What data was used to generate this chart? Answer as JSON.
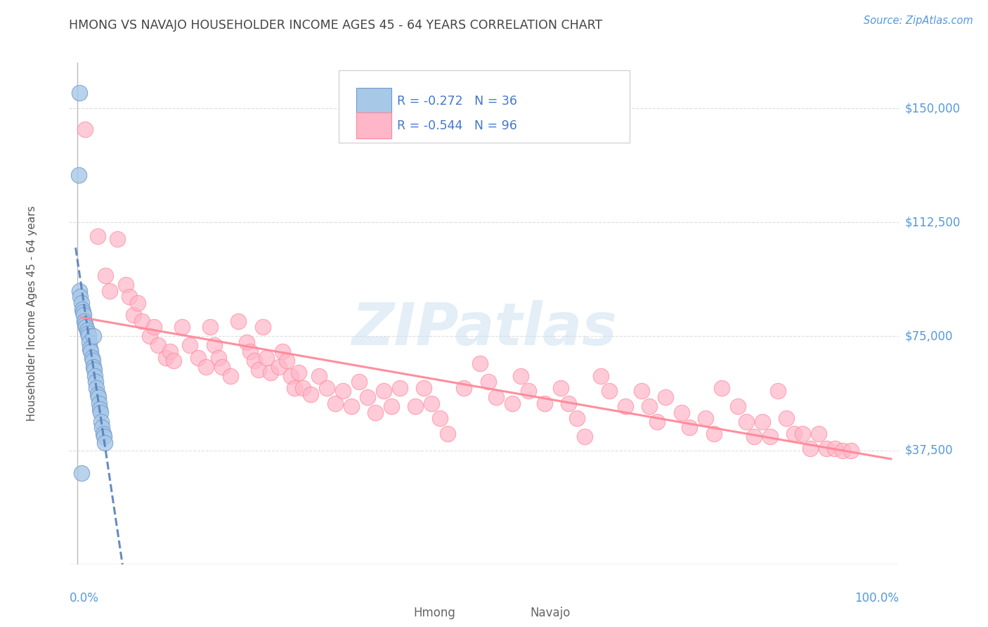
{
  "title": "HMONG VS NAVAJO HOUSEHOLDER INCOME AGES 45 - 64 YEARS CORRELATION CHART",
  "source": "Source: ZipAtlas.com",
  "ylabel": "Householder Income Ages 45 - 64 years",
  "ytick_values": [
    37500,
    75000,
    112500,
    150000
  ],
  "ytick_labels": [
    "$37,500",
    "$75,000",
    "$112,500",
    "$150,000"
  ],
  "ymin": 0,
  "ymax": 165000,
  "xmin": -0.01,
  "xmax": 1.02,
  "watermark": "ZIPatlas",
  "hmong_R": -0.272,
  "hmong_N": 36,
  "navajo_R": -0.544,
  "navajo_N": 96,
  "hmong_color": "#A8C8E8",
  "navajo_color": "#FFB6C8",
  "hmong_edge": "#7099CC",
  "navajo_edge": "#FF8899",
  "hmong_line_color": "#5580BB",
  "navajo_line_color": "#FF8899",
  "background_color": "#FFFFFF",
  "grid_color": "#DDDDDD",
  "title_color": "#444444",
  "source_color": "#5599DD",
  "axis_label_color": "#5599DD",
  "legend_text_color": "#4477CC",
  "hmong_x": [
    0.002,
    0.003,
    0.004,
    0.005,
    0.006,
    0.007,
    0.008,
    0.009,
    0.01,
    0.011,
    0.012,
    0.013,
    0.014,
    0.015,
    0.016,
    0.017,
    0.018,
    0.019,
    0.02,
    0.021,
    0.022,
    0.023,
    0.024,
    0.025,
    0.026,
    0.027,
    0.028,
    0.029,
    0.03,
    0.031,
    0.032,
    0.033,
    0.034,
    0.003,
    0.02,
    0.005
  ],
  "hmong_y": [
    128000,
    90000,
    88000,
    86000,
    84000,
    83000,
    82000,
    80000,
    79000,
    78000,
    77000,
    76000,
    75000,
    73000,
    71000,
    70000,
    68000,
    67000,
    65000,
    64000,
    62000,
    60000,
    58000,
    56000,
    55000,
    53000,
    51000,
    50000,
    47000,
    45000,
    43000,
    42000,
    40000,
    155000,
    75000,
    30000
  ],
  "navajo_x": [
    0.01,
    0.025,
    0.035,
    0.04,
    0.05,
    0.06,
    0.065,
    0.07,
    0.075,
    0.08,
    0.09,
    0.095,
    0.1,
    0.11,
    0.115,
    0.12,
    0.13,
    0.14,
    0.15,
    0.16,
    0.165,
    0.17,
    0.175,
    0.18,
    0.19,
    0.2,
    0.21,
    0.215,
    0.22,
    0.225,
    0.23,
    0.235,
    0.24,
    0.25,
    0.255,
    0.26,
    0.265,
    0.27,
    0.275,
    0.28,
    0.29,
    0.3,
    0.31,
    0.32,
    0.33,
    0.34,
    0.35,
    0.36,
    0.37,
    0.38,
    0.39,
    0.4,
    0.42,
    0.43,
    0.44,
    0.45,
    0.46,
    0.48,
    0.5,
    0.51,
    0.52,
    0.54,
    0.55,
    0.56,
    0.58,
    0.6,
    0.61,
    0.62,
    0.63,
    0.65,
    0.66,
    0.68,
    0.7,
    0.71,
    0.72,
    0.73,
    0.75,
    0.76,
    0.78,
    0.79,
    0.8,
    0.82,
    0.83,
    0.84,
    0.85,
    0.86,
    0.87,
    0.88,
    0.89,
    0.9,
    0.91,
    0.92,
    0.93,
    0.94,
    0.95,
    0.96
  ],
  "navajo_y": [
    143000,
    108000,
    95000,
    90000,
    107000,
    92000,
    88000,
    82000,
    86000,
    80000,
    75000,
    78000,
    72000,
    68000,
    70000,
    67000,
    78000,
    72000,
    68000,
    65000,
    78000,
    72000,
    68000,
    65000,
    62000,
    80000,
    73000,
    70000,
    67000,
    64000,
    78000,
    68000,
    63000,
    65000,
    70000,
    67000,
    62000,
    58000,
    63000,
    58000,
    56000,
    62000,
    58000,
    53000,
    57000,
    52000,
    60000,
    55000,
    50000,
    57000,
    52000,
    58000,
    52000,
    58000,
    53000,
    48000,
    43000,
    58000,
    66000,
    60000,
    55000,
    53000,
    62000,
    57000,
    53000,
    58000,
    53000,
    48000,
    42000,
    62000,
    57000,
    52000,
    57000,
    52000,
    47000,
    55000,
    50000,
    45000,
    48000,
    43000,
    58000,
    52000,
    47000,
    42000,
    47000,
    42000,
    57000,
    48000,
    43000,
    43000,
    38000,
    43000,
    38000,
    38000,
    37500,
    37500
  ]
}
